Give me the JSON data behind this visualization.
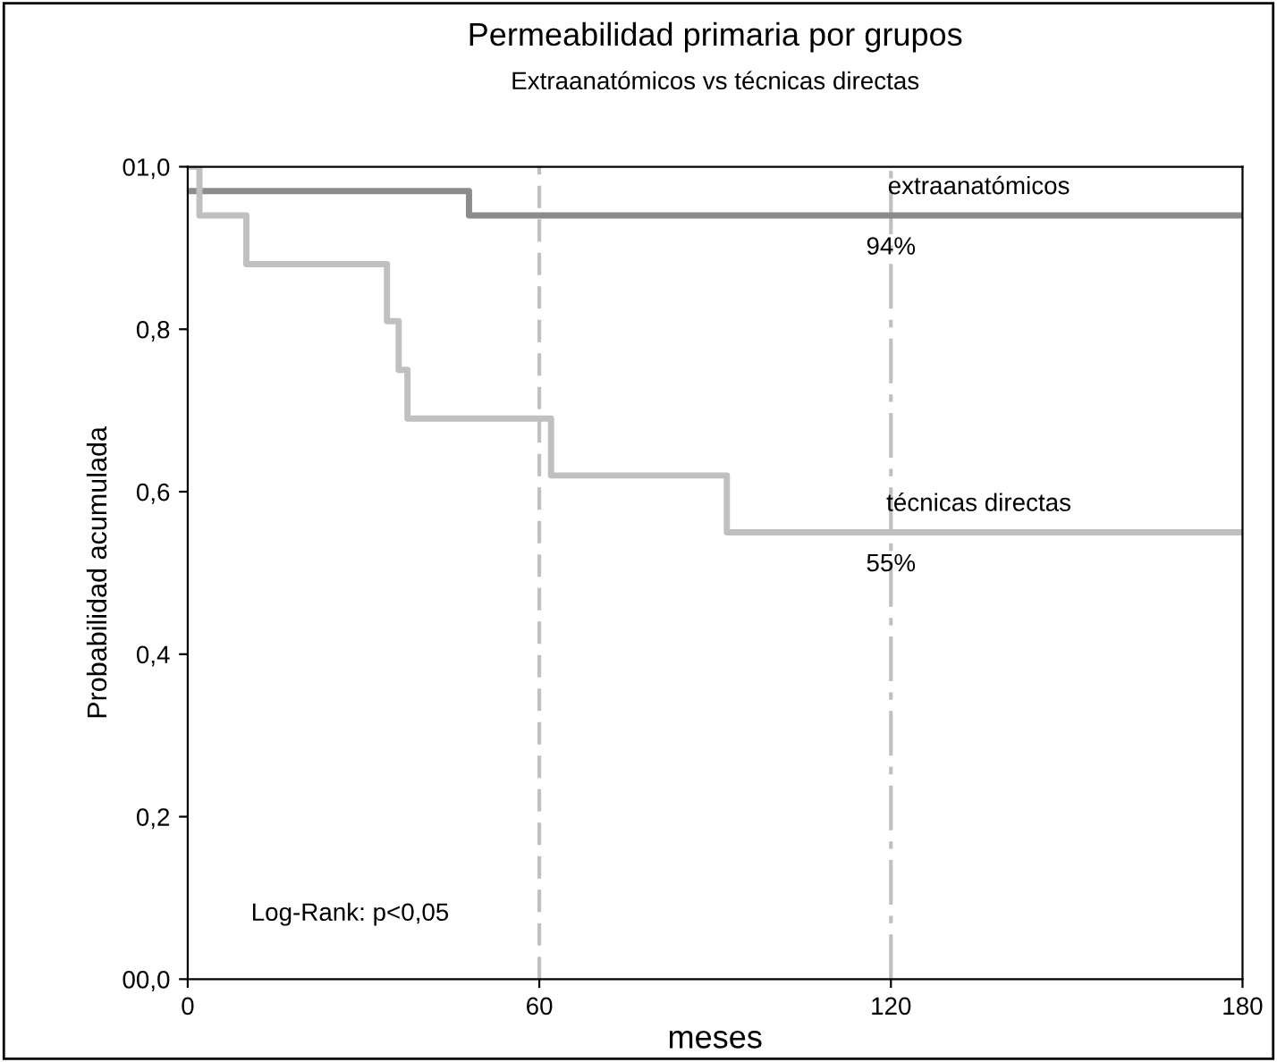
{
  "chart_data": {
    "type": "step",
    "title": "Permeabilidad primaria por grupos",
    "subtitle": "Extraanatómicos vs técnicas directas",
    "xlabel": "meses",
    "ylabel": "Probabilidad acumulada",
    "series": [
      {
        "name": "extraanatómicos",
        "color": "#8c8c8c",
        "x": [
          0,
          48,
          180
        ],
        "values": [
          0.97,
          0.94,
          0.94
        ]
      },
      {
        "name": "técnicas directas",
        "color": "#c0c0c0",
        "x": [
          0,
          2,
          10,
          34,
          36,
          37.5,
          62,
          92,
          180
        ],
        "values": [
          1.0,
          0.94,
          0.88,
          0.81,
          0.75,
          0.69,
          0.62,
          0.55,
          0.55
        ]
      }
    ],
    "annotations": [
      {
        "text": "94%",
        "x": 120,
        "y": 0.9
      },
      {
        "text": "55%",
        "x": 120,
        "y": 0.51
      },
      "Log-Rank: p<0,05"
    ],
    "xlim": [
      0,
      180
    ],
    "xticks": [
      0,
      60,
      120,
      180
    ],
    "ylim": [
      0,
      1
    ],
    "yticks": [
      {
        "value": 0,
        "label": "00,0"
      },
      {
        "value": 0.2,
        "label": "0,2"
      },
      {
        "value": 0.4,
        "label": "0,4"
      },
      {
        "value": 0.6,
        "label": "0,6"
      },
      {
        "value": 0.8,
        "label": "0,8"
      },
      {
        "value": 1,
        "label": "01,0"
      }
    ],
    "ref_lines": [
      {
        "axis": "x",
        "value": 60,
        "color": "#c0c0c0",
        "line_style": "dashed"
      },
      {
        "axis": "x",
        "value": 120,
        "color": "#c0c0c0",
        "line_style": "dashdot"
      }
    ],
    "grid": false,
    "legend": false,
    "marker": "none"
  }
}
